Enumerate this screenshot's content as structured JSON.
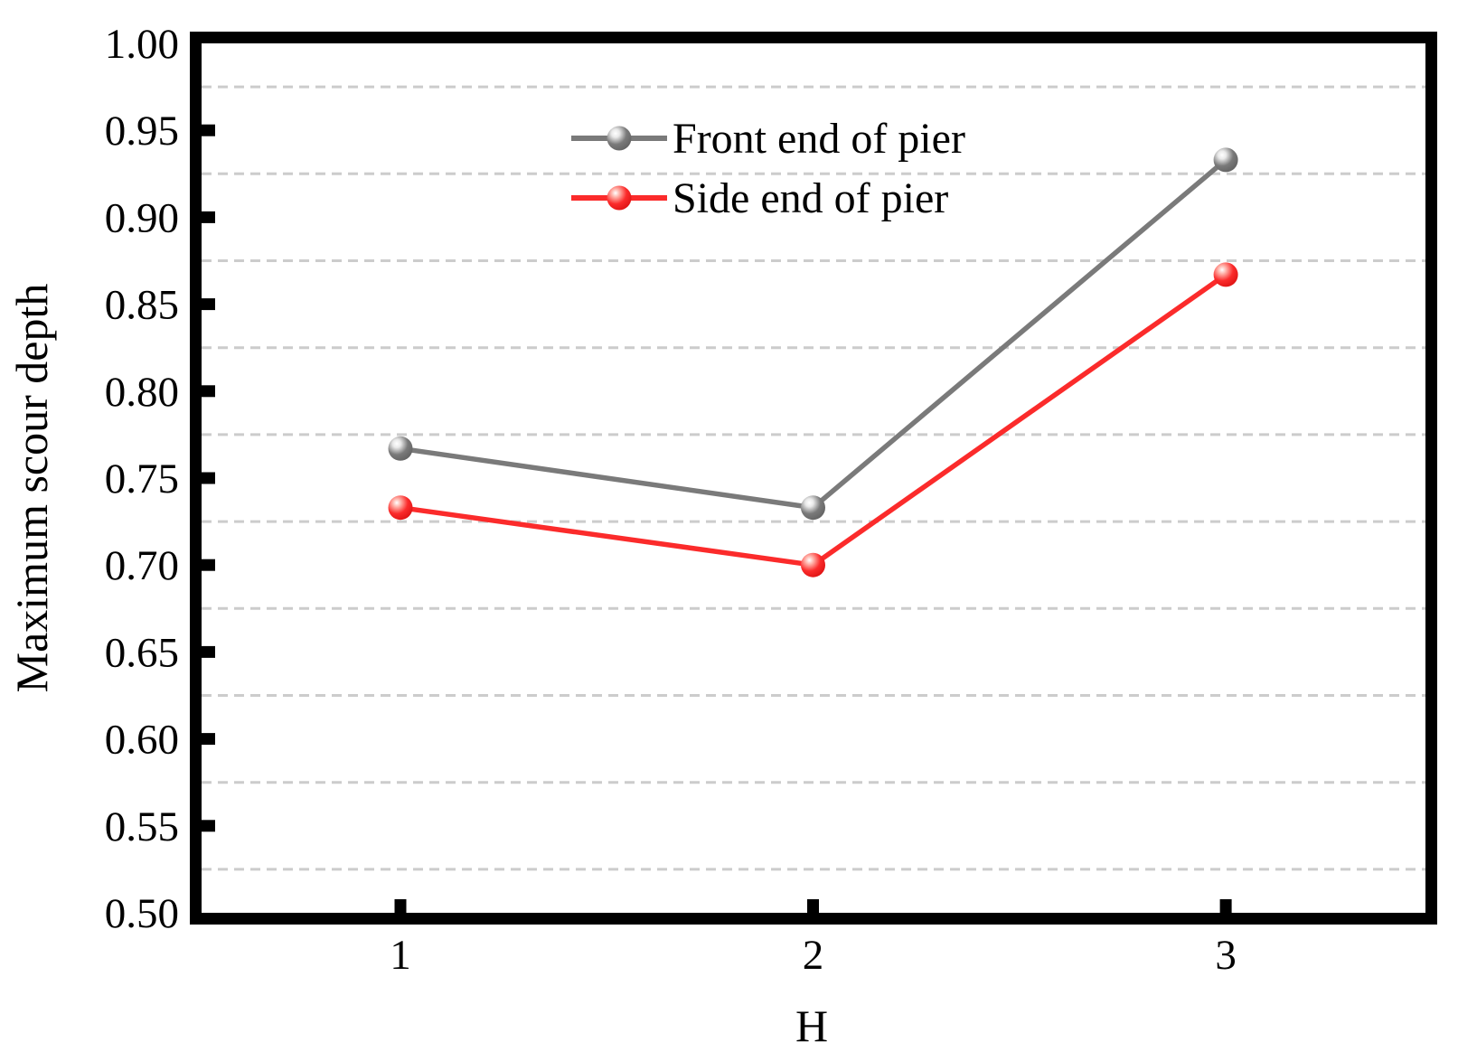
{
  "figure": {
    "background": "#ffffff"
  },
  "chart_data": {
    "type": "line",
    "title": "",
    "xlabel": "H",
    "ylabel": "Maximum scour depth",
    "x": [
      1,
      2,
      3
    ],
    "x_tick_labels": [
      "1",
      "2",
      "3"
    ],
    "y_tick_values": [
      0.5,
      0.55,
      0.6,
      0.65,
      0.7,
      0.75,
      0.8,
      0.85,
      0.9,
      0.95,
      1.0
    ],
    "y_tick_labels": [
      "0.50",
      "0.55",
      "0.60",
      "0.65",
      "0.70",
      "0.75",
      "0.80",
      "0.85",
      "0.90",
      "0.95",
      "1.00"
    ],
    "minor_gridline_values": [
      0.525,
      0.575,
      0.625,
      0.675,
      0.725,
      0.775,
      0.825,
      0.875,
      0.925,
      0.975
    ],
    "xlim": [
      0.518,
      3.484
    ],
    "ylim": [
      0.5,
      1.0
    ],
    "grid": {
      "horizontal_dashed_at_minor_ticks": true,
      "vertical": false,
      "color": "#cccccc"
    },
    "legend": {
      "position": "inside-top-center",
      "entries": [
        "Front end of pier",
        "Side end of pier"
      ]
    },
    "series": [
      {
        "name": "Front end of pier",
        "color": "#7a7a7a",
        "color_dark": "#636363",
        "color_light": "#e9e9e9",
        "marker": "sphere-3d",
        "values": [
          0.767,
          0.733,
          0.933
        ]
      },
      {
        "name": "Side end of pier",
        "color": "#fb2b2b",
        "color_dark": "#df1414",
        "color_light": "#ffb4ab",
        "marker": "sphere-3d",
        "values": [
          0.733,
          0.7,
          0.867
        ]
      }
    ],
    "axis_color": "#000000",
    "text_color": "#000000"
  }
}
